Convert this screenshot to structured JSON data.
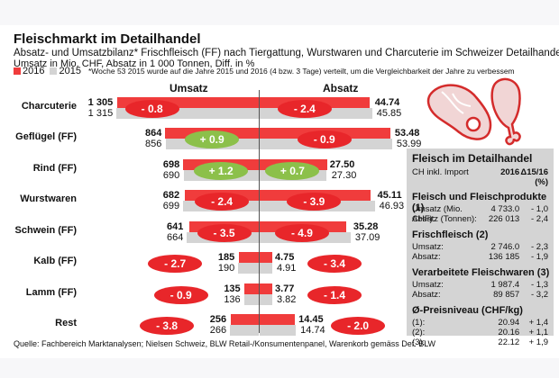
{
  "header": {
    "title": "Fleischmarkt im Detailhandel",
    "subtitle1": "Absatz- und Umsatzbilanz* Frischfleisch (FF) nach Tiergattung, Wurstwaren und Charcuterie im Schweizer Detailhandel",
    "subtitle2": "Umsatz in Mio. CHF, Absatz in 1 000 Tonnen, Diff. in %",
    "legend_2016": "2016",
    "legend_2015": "2015",
    "note": "*Woche 53 2015 wurde auf die Jahre 2015 und 2016 (4 bzw. 3 Tage) verteilt, um die Vergleichbarkeit der Jahre zu verbessem"
  },
  "colors": {
    "y2016": "#f03c3c",
    "y2015": "#d4d4d4",
    "negative": "#e8262a",
    "positive": "#8cc04a",
    "axis": "#555555"
  },
  "chart_data": {
    "type": "bar",
    "orientation": "horizontal-butterfly",
    "left_title": "Umsatz",
    "right_title": "Absatz",
    "categories": [
      "Charcuterie",
      "Geflügel (FF)",
      "Rind (FF)",
      "Wurstwaren",
      "Schwein (FF)",
      "Kalb (FF)",
      "Lamm (FF)",
      "Rest"
    ],
    "umsatz": {
      "unit": "Mio. CHF",
      "series": [
        {
          "name": "2016",
          "values": [
            1305,
            864,
            698,
            682,
            641,
            185,
            135,
            256
          ],
          "labels": [
            "1 305",
            "864",
            "698",
            "682",
            "641",
            "185",
            "135",
            "256"
          ]
        },
        {
          "name": "2015",
          "values": [
            1315,
            856,
            690,
            699,
            664,
            190,
            136,
            266
          ],
          "labels": [
            "1 315",
            "856",
            "690",
            "699",
            "664",
            "190",
            "136",
            "266"
          ]
        }
      ],
      "diff_pct": [
        -0.8,
        0.9,
        1.2,
        -2.4,
        -3.5,
        -2.7,
        -0.9,
        -3.8
      ],
      "diff_labels": [
        "- 0.8",
        "+ 0.9",
        "+ 1.2",
        "- 2.4",
        "- 3.5",
        "- 2.7",
        "- 0.9",
        "- 3.8"
      ]
    },
    "absatz": {
      "unit": "1 000 Tonnen",
      "series": [
        {
          "name": "2016",
          "values": [
            44.74,
            53.48,
            27.5,
            45.11,
            35.28,
            4.75,
            3.77,
            14.45
          ],
          "labels": [
            "44.74",
            "53.48",
            "27.50",
            "45.11",
            "35.28",
            "4.75",
            "3.77",
            "14.45"
          ]
        },
        {
          "name": "2015",
          "values": [
            45.85,
            53.99,
            27.3,
            46.93,
            37.09,
            4.91,
            3.82,
            14.74
          ],
          "labels": [
            "45.85",
            "53.99",
            "27.30",
            "46.93",
            "37.09",
            "4.91",
            "3.82",
            "14.74"
          ]
        }
      ],
      "diff_pct": [
        -2.4,
        -0.9,
        0.7,
        -3.9,
        -4.9,
        -3.4,
        -1.4,
        -2.0
      ],
      "diff_labels": [
        "- 2.4",
        "- 0.9",
        "+ 0.7",
        "- 3.9",
        "- 4.9",
        "- 3.4",
        "- 1.4",
        "- 2.0"
      ]
    }
  },
  "infobox": {
    "title": "Fleisch im Detailhandel",
    "scope": "CH inkl. Import",
    "col_year": "2016",
    "col_delta": "Δ15/16",
    "col_delta_unit": "(%)",
    "sections": [
      {
        "heading": "Fleisch und Fleischprodukte (1)",
        "rows": [
          {
            "label": "Umsatz (Mio. CHF):",
            "value": "4 733.0",
            "delta": "-  1,0"
          },
          {
            "label": "Absatz (Tonnen):",
            "value": "226 013",
            "delta": "-  2,4"
          }
        ]
      },
      {
        "heading": "Frischfleisch (2)",
        "rows": [
          {
            "label": "Umsatz:",
            "value": "2 746.0",
            "delta": "-  2,3"
          },
          {
            "label": "Absatz:",
            "value": "136 185",
            "delta": "-  1,9"
          }
        ]
      },
      {
        "heading": "Verarbeitete Fleischwaren (3)",
        "rows": [
          {
            "label": "Umsatz:",
            "value": "1 987.4",
            "delta": "-  1,3"
          },
          {
            "label": "Absatz:",
            "value": "89 857",
            "delta": "-  3,2"
          }
        ]
      },
      {
        "heading": "Ø-Preisniveau (CHF/kg)",
        "rows": [
          {
            "label": "(1):",
            "value": "20.94",
            "delta": "+  1,4"
          },
          {
            "label": "(2):",
            "value": "20.16",
            "delta": "+  1,1"
          },
          {
            "label": "(3):",
            "value": "22.12",
            "delta": "+  1,9"
          }
        ]
      }
    ]
  },
  "icons": [
    "steak-icon",
    "drumstick-icon"
  ],
  "source": "Quelle: Fachbereich Marktanalysen; Nielsen Schweiz, BLW Retail-/Konsumentenpanel, Warenkorb gemäss Def. BLW"
}
